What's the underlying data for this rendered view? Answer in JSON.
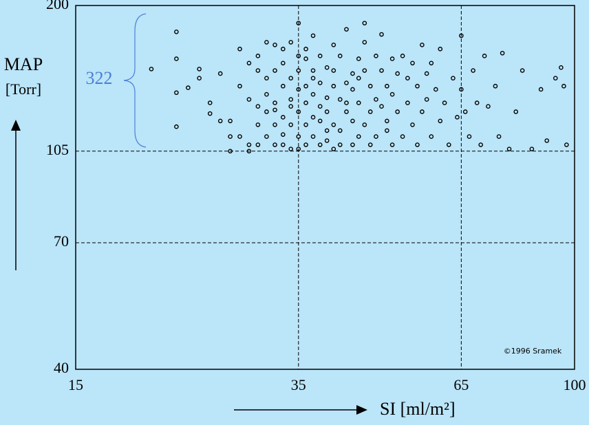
{
  "chart_data": {
    "type": "scatter",
    "y_label": "MAP",
    "y_unit": "[Torr]",
    "x_label": "SI [ml/m²]",
    "annotation": "322",
    "credit": "©1996 Sramek",
    "xscale": "log",
    "yscale": "log",
    "xlim": [
      15,
      100
    ],
    "ylim": [
      40,
      200
    ],
    "xticks": [
      15,
      35,
      65,
      100
    ],
    "yticks": [
      40,
      70,
      105,
      200
    ],
    "grid": true,
    "marker_color": "#000000",
    "annotation_color": "#4a7fd6",
    "x": [
      20,
      22,
      22,
      22,
      22,
      23,
      24,
      24,
      25,
      25,
      26,
      26,
      27,
      27,
      27,
      28,
      28,
      28,
      29,
      29,
      29,
      29,
      30,
      30,
      30,
      30,
      30,
      31,
      31,
      31,
      31,
      31,
      32,
      32,
      32,
      32,
      32,
      32,
      33,
      33,
      33,
      33,
      33,
      33,
      34,
      34,
      34,
      34,
      34,
      34,
      35,
      35,
      35,
      35,
      35,
      35,
      35,
      36,
      36,
      36,
      36,
      36,
      36,
      37,
      37,
      37,
      37,
      37,
      37,
      38,
      38,
      38,
      38,
      38,
      39,
      39,
      39,
      39,
      39,
      40,
      40,
      40,
      40,
      40,
      41,
      41,
      41,
      41,
      42,
      42,
      42,
      42,
      43,
      43,
      43,
      43,
      44,
      44,
      44,
      44,
      45,
      45,
      45,
      45,
      46,
      46,
      46,
      47,
      47,
      47,
      48,
      48,
      48,
      49,
      49,
      49,
      50,
      50,
      50,
      51,
      51,
      52,
      52,
      53,
      53,
      54,
      54,
      55,
      55,
      56,
      56,
      57,
      57,
      58,
      58,
      59,
      60,
      60,
      61,
      62,
      63,
      64,
      65,
      65,
      66,
      67,
      68,
      69,
      70,
      71,
      72,
      74,
      75,
      76,
      78,
      80,
      82,
      85,
      88,
      90,
      93,
      95,
      96,
      97
    ],
    "values": [
      151,
      178,
      158,
      136,
      117,
      139,
      145,
      151,
      130,
      124,
      120,
      148,
      120,
      112,
      105,
      165,
      140,
      112,
      155,
      108,
      132,
      105,
      160,
      150,
      128,
      118,
      108,
      170,
      125,
      135,
      145,
      112,
      168,
      130,
      118,
      150,
      108,
      126,
      165,
      140,
      122,
      113,
      108,
      155,
      132,
      170,
      145,
      118,
      106,
      128,
      185,
      160,
      138,
      112,
      106,
      150,
      125,
      165,
      140,
      118,
      130,
      108,
      158,
      145,
      122,
      112,
      175,
      150,
      135,
      120,
      160,
      108,
      142,
      128,
      115,
      152,
      133,
      110,
      125,
      168,
      140,
      118,
      106,
      150,
      132,
      160,
      115,
      108,
      142,
      125,
      130,
      180,
      148,
      120,
      108,
      138,
      158,
      112,
      130,
      145,
      185,
      170,
      150,
      118,
      108,
      140,
      125,
      160,
      132,
      112,
      128,
      150,
      176,
      115,
      140,
      120,
      158,
      108,
      135,
      148,
      125,
      160,
      112,
      145,
      130,
      118,
      155,
      108,
      140,
      125,
      168,
      132,
      148,
      112,
      155,
      138,
      120,
      165,
      130,
      108,
      145,
      122,
      175,
      138,
      125,
      112,
      150,
      130,
      108,
      160,
      128,
      140,
      112,
      162,
      106,
      125,
      150,
      106,
      138,
      110,
      145,
      152,
      140,
      108
    ]
  }
}
